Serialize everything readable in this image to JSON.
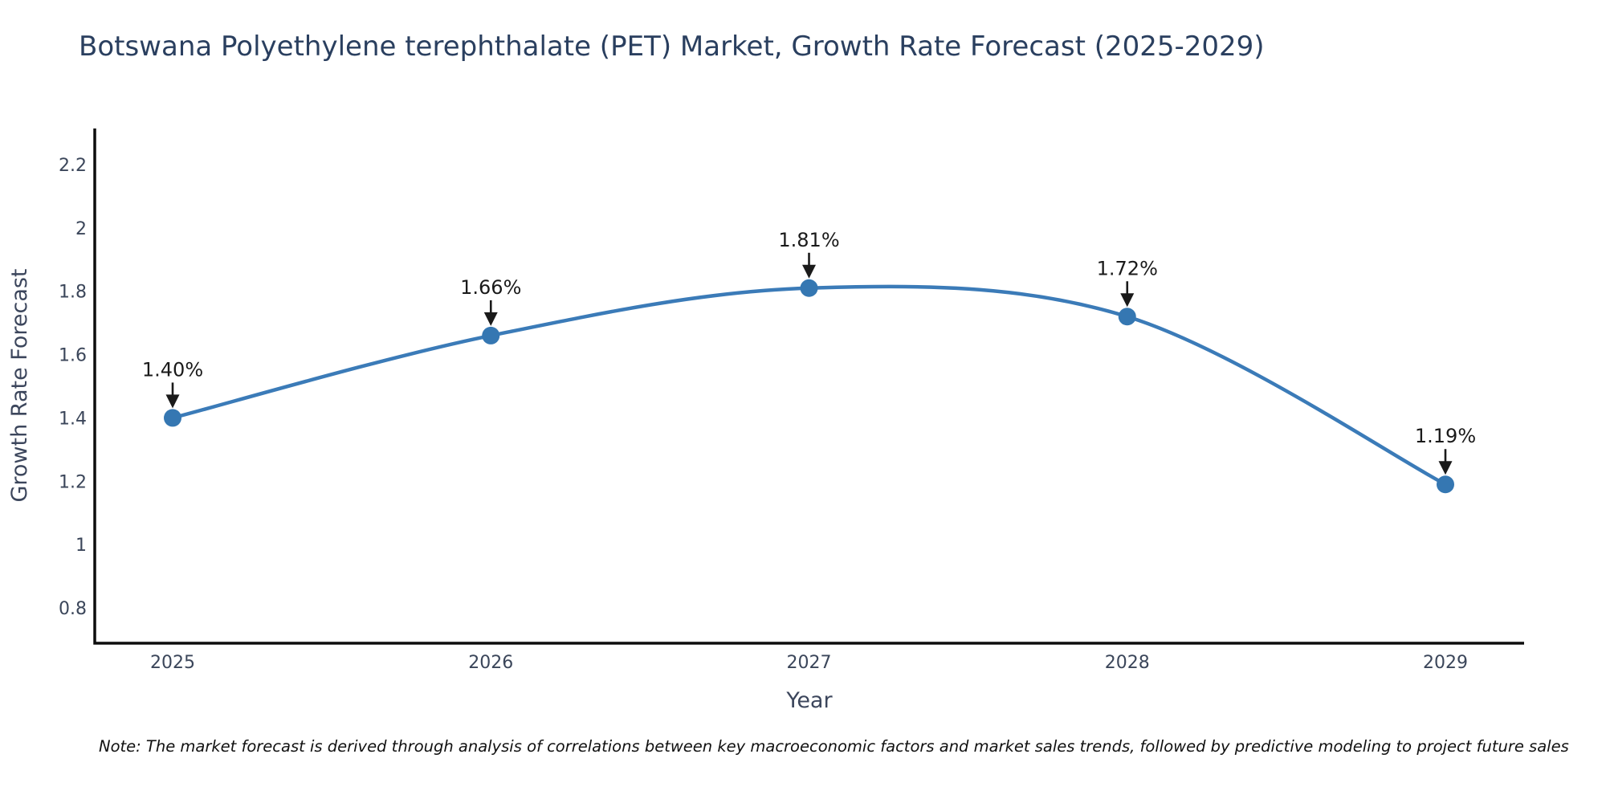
{
  "title": "Botswana Polyethylene terephthalate (PET) Market, Growth Rate Forecast (2025-2029)",
  "note": "Note: The market forecast is derived through analysis of correlations between key macroeconomic factors and market sales trends, followed by predictive modeling to project future sales",
  "chart_data": {
    "type": "line",
    "title": "Botswana Polyethylene terephthalate (PET) Market, Growth Rate Forecast (2025-2029)",
    "xlabel": "Year",
    "ylabel": "Growth Rate Forecast",
    "x": [
      2025,
      2026,
      2027,
      2028,
      2029
    ],
    "values": [
      1.4,
      1.66,
      1.81,
      1.72,
      1.19
    ],
    "point_labels": [
      "1.40%",
      "1.66%",
      "1.81%",
      "1.72%",
      "1.19%"
    ],
    "xtick_labels": [
      "2025",
      "2026",
      "2027",
      "2028",
      "2029"
    ],
    "ytick_values": [
      0.8,
      1.0,
      1.2,
      1.4,
      1.6,
      1.8,
      2.0,
      2.2
    ],
    "ytick_labels": [
      "0.8",
      "1",
      "1.2",
      "1.4",
      "1.6",
      "1.8",
      "2",
      "2.2"
    ],
    "xlim": [
      2024.755,
      2029.247
    ],
    "ylim": [
      0.688,
      2.314
    ],
    "grid": false,
    "legend": "none",
    "line_shape": "spline",
    "colors": {
      "line": "#3b7bb8",
      "marker": "#3577b2",
      "axis": "#0d0d0d",
      "title": "#2a3f5f",
      "tick": "#3b465a",
      "axis_label": "#3c465c",
      "annotation": "#1a1a1a",
      "note": "#111111",
      "background": "#ffffff"
    }
  }
}
